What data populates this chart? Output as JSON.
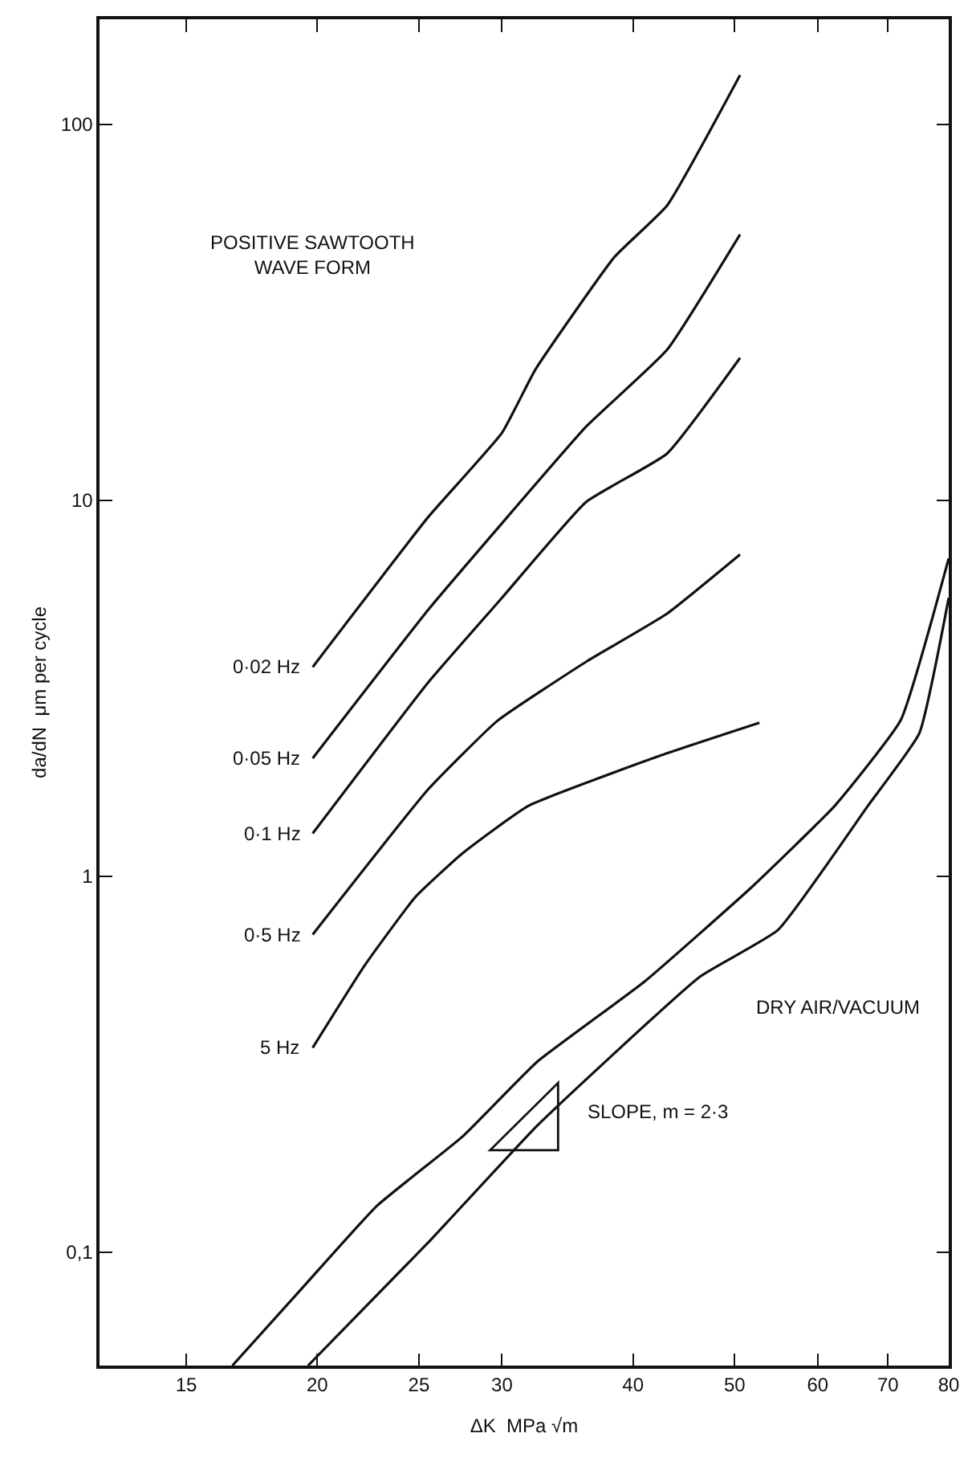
{
  "chart_data": {
    "type": "line",
    "xlabel": "ΔK  MPa √m",
    "ylabel": "da/dN  μm per cycle",
    "log": "xy",
    "legend": false,
    "xlim": [
      12.4,
      80
    ],
    "xticks": [
      15,
      20,
      25,
      30,
      40,
      50,
      60,
      70,
      80
    ],
    "ylim": [
      0.05,
      190
    ],
    "yticks": [
      {
        "value": 0.1,
        "label": "0,1"
      },
      1,
      10,
      100
    ],
    "series": [
      {
        "name": "0·02 Hz",
        "color": "#111111",
        "x": [
          19.8,
          25.5,
          30,
          32.3,
          38.4,
          43.1,
          50.6
        ],
        "values": [
          3.6,
          9.0,
          15.1,
          22.3,
          44.3,
          60.7,
          135
        ]
      },
      {
        "name": "0·05 Hz",
        "color": "#111111",
        "x": [
          19.8,
          25.5,
          29.7,
          36.1,
          43.1,
          50.6
        ],
        "values": [
          2.06,
          5.1,
          8.4,
          15.7,
          25.1,
          50.9
        ]
      },
      {
        "name": "0·1 Hz",
        "color": "#111111",
        "x": [
          19.8,
          25.5,
          30,
          36.1,
          43.1,
          50.6
        ],
        "values": [
          1.3,
          3.27,
          5.5,
          9.9,
          13.3,
          23.9
        ]
      },
      {
        "name": "0·5 Hz",
        "color": "#111111",
        "x": [
          19.8,
          25.5,
          29.7,
          36.1,
          43.1,
          50.6
        ],
        "values": [
          0.7,
          1.7,
          2.59,
          3.72,
          4.99,
          7.17
        ]
      },
      {
        "name": "5 Hz",
        "color": "#111111",
        "x": [
          19.8,
          22.2,
          24.8,
          27.5,
          31.8,
          42.6,
          52.8
        ],
        "values": [
          0.35,
          0.58,
          0.88,
          1.15,
          1.54,
          2.1,
          2.56
        ]
      },
      {
        "color": "#111111",
        "x": [
          16.6,
          19.4,
          22.8,
          27.5,
          32.4,
          41,
          52,
          62.3,
          72,
          80
        ],
        "values": [
          0.05,
          0.081,
          0.133,
          0.203,
          0.321,
          0.524,
          0.94,
          1.54,
          2.6,
          7
        ]
      },
      {
        "color": "#111111",
        "x": [
          19.6,
          25.5,
          32.4,
          46.3,
          55,
          67,
          75,
          80
        ],
        "values": [
          0.05,
          0.106,
          0.217,
          0.54,
          0.72,
          1.54,
          2.4,
          5.5
        ]
      }
    ],
    "annotations": [
      "POSITIVE SAWTOOTH\nWAVE FORM",
      "DRY AIR/VACUUM",
      "SLOPE, m = 2·3"
    ]
  }
}
